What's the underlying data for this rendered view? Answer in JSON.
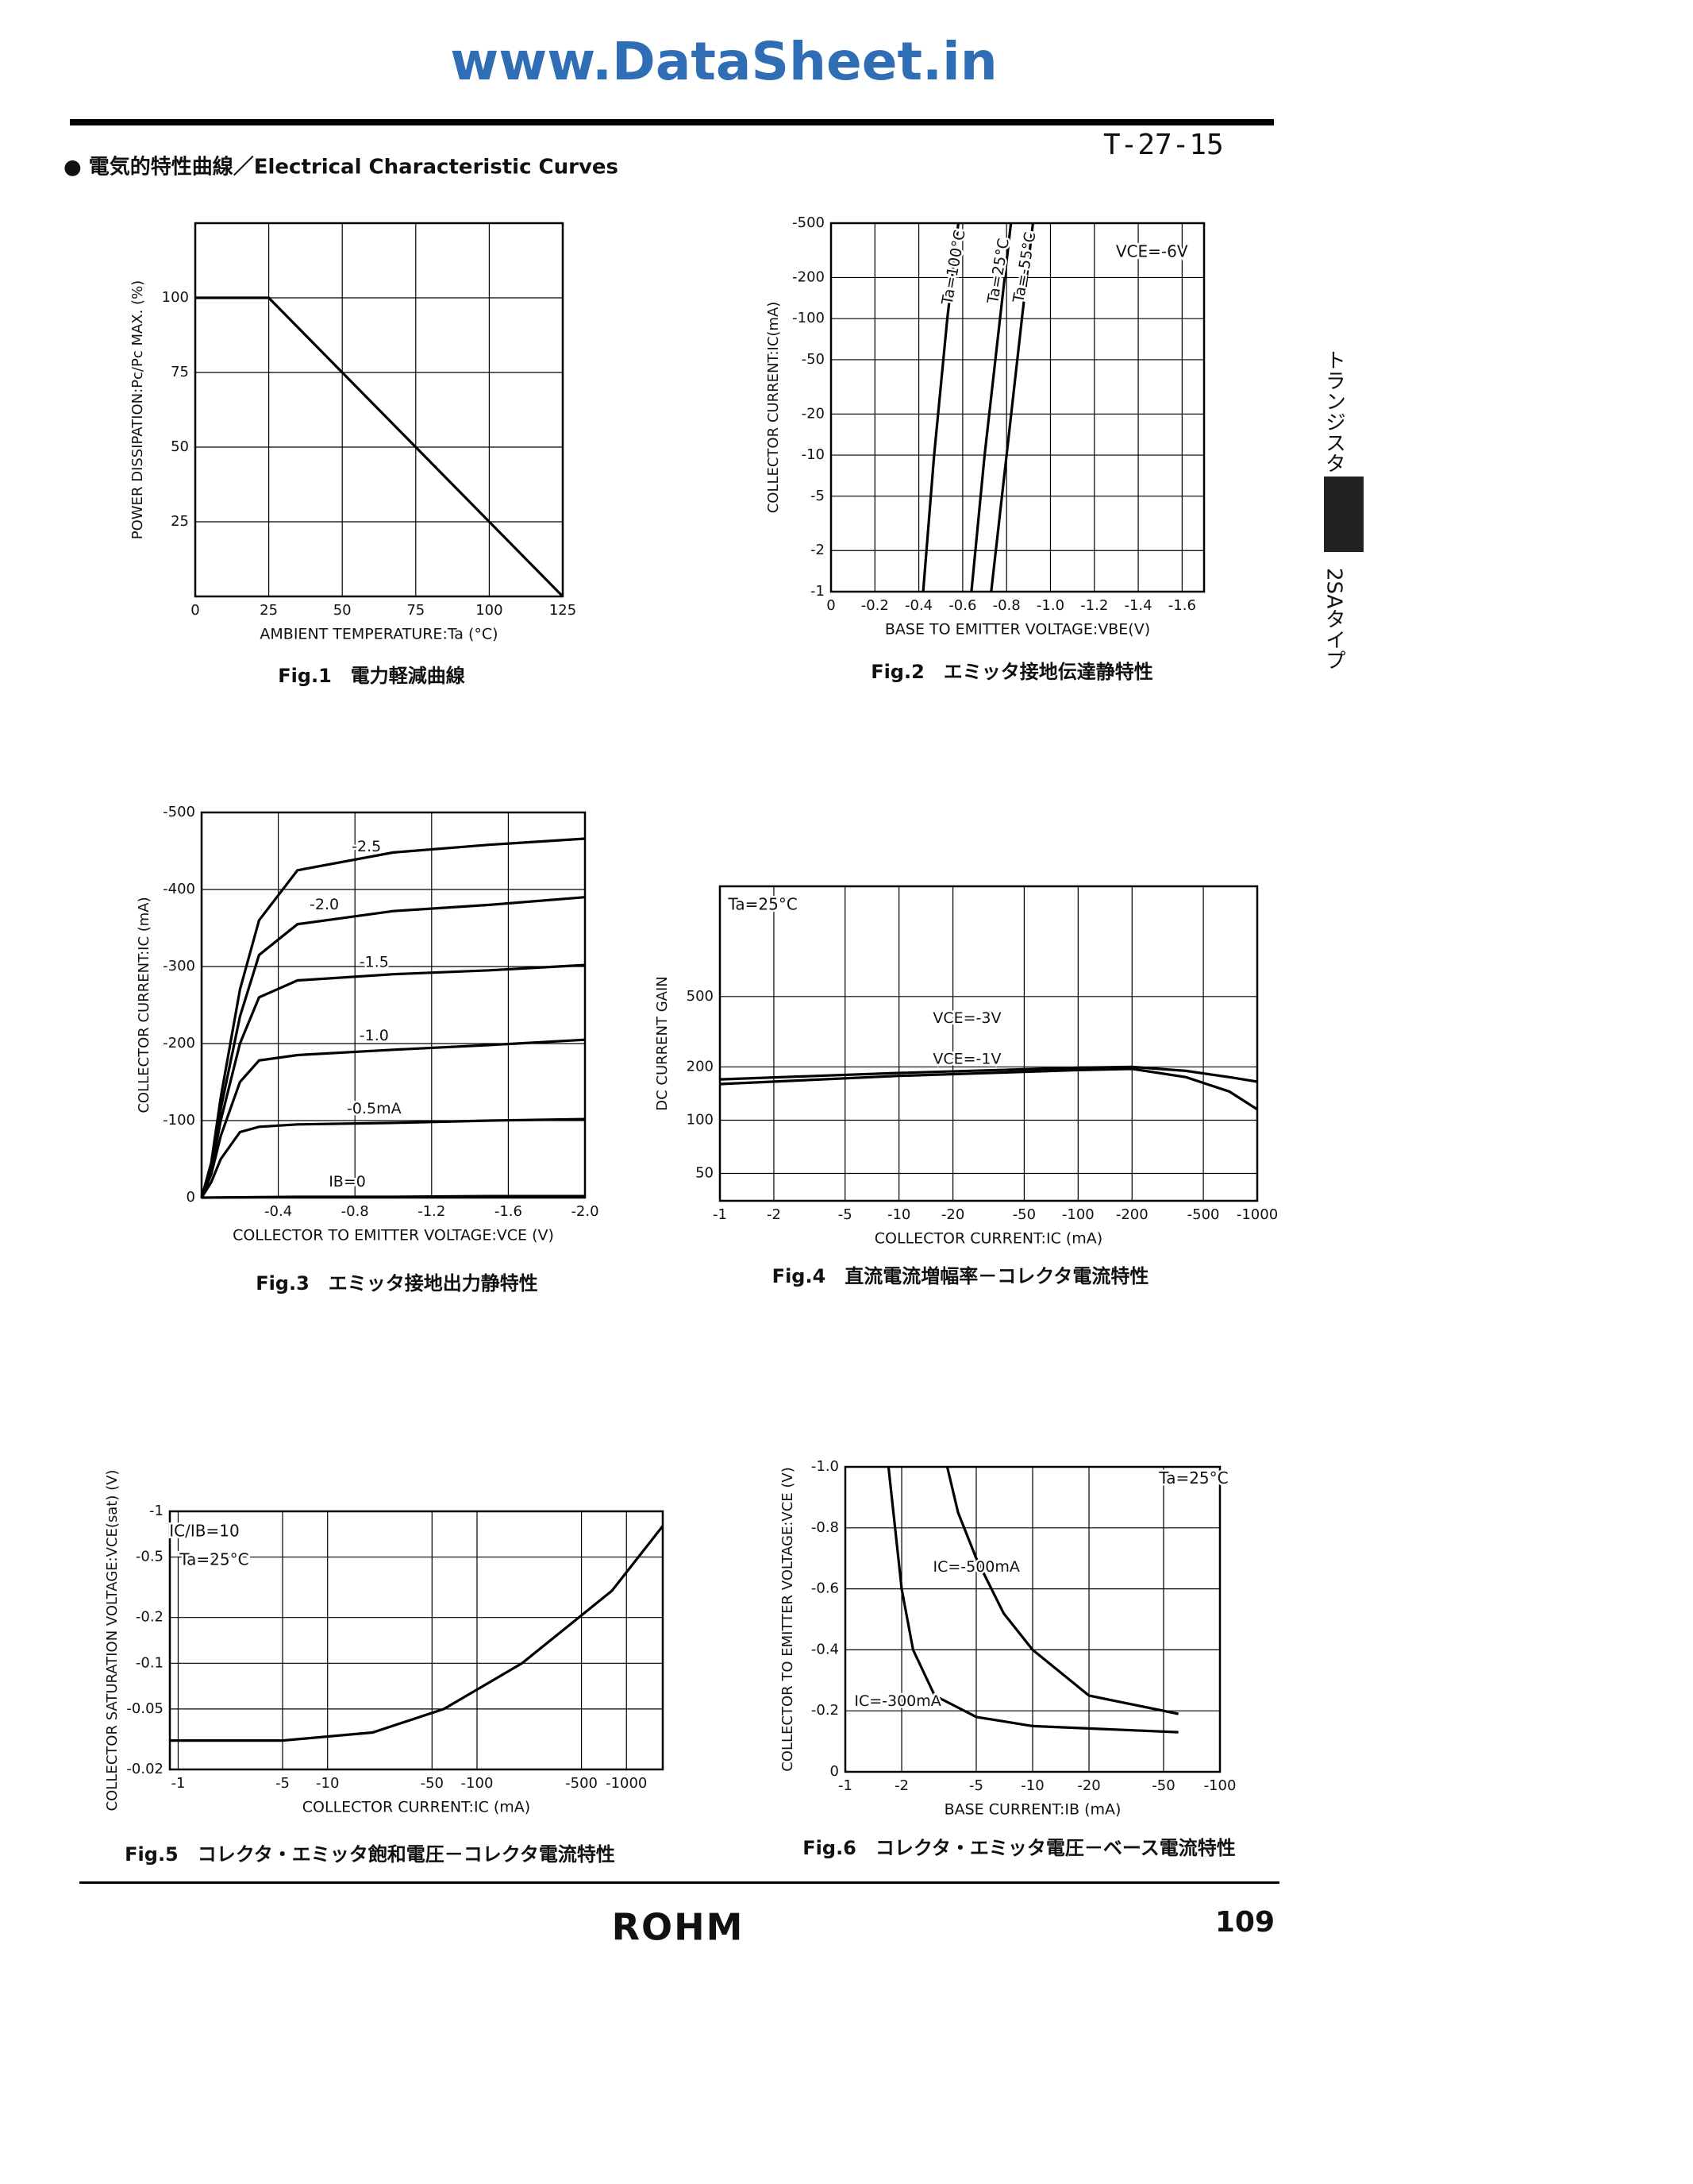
{
  "header": {
    "watermark": "www.DataSheet.in",
    "code": "T-27-15",
    "section": "● 電気的特性曲線／Electrical Characteristic Curves",
    "side_top": "トランジスタ",
    "side_bottom": "2SAタイプ"
  },
  "chart_data": [
    {
      "type": "line",
      "title": "Fig.1　電力軽減曲線",
      "xlabel": "AMBIENT TEMPERATURE:Ta (°C)",
      "ylabel": "POWER DISSIPATION:Pc/Pc MAX. (%)",
      "xscale": "linear",
      "yscale": "linear",
      "xlim": [
        0,
        125
      ],
      "ylim": [
        0,
        125
      ],
      "xticks": [
        0,
        25,
        50,
        75,
        100,
        125
      ],
      "yticks": [
        25,
        50,
        75,
        100
      ],
      "grid": true,
      "series": [
        {
          "color": "#000000",
          "x": [
            0,
            25,
            125
          ],
          "values": [
            100,
            100,
            0
          ]
        }
      ]
    },
    {
      "type": "line",
      "title": "Fig.2　エミッタ接地伝達静特性",
      "xlabel": "BASE TO EMITTER VOLTAGE:VBE(V)",
      "ylabel": "COLLECTOR CURRENT:IC(mA)",
      "xscale": "linear",
      "yscale": "log",
      "xlim": [
        0,
        -1.7
      ],
      "ylim": [
        -1,
        -500
      ],
      "xticks": [
        0,
        -0.2,
        -0.4,
        -0.6,
        -0.8,
        {
          "value": -1,
          "label": "-1.0"
        },
        -1.2,
        -1.4,
        -1.6
      ],
      "yticks": [
        -1,
        -2,
        -5,
        -10,
        -20,
        -50,
        -100,
        -200,
        -500
      ],
      "grid": true,
      "annotations": [
        "VCE=-6V"
      ],
      "series": [
        {
          "name": "Ta=100°C",
          "color": "#000000",
          "x": [
            -0.42,
            -0.47,
            -0.53,
            -0.58
          ],
          "values": [
            -1,
            -10,
            -100,
            -500
          ]
        },
        {
          "name": "Ta=25°C",
          "color": "#000000",
          "x": [
            -0.64,
            -0.7,
            -0.77,
            -0.82
          ],
          "values": [
            -1,
            -10,
            -100,
            -500
          ]
        },
        {
          "name": "Ta=-55°C",
          "color": "#000000",
          "x": [
            -0.73,
            -0.8,
            -0.87,
            -0.92
          ],
          "values": [
            -1,
            -10,
            -100,
            -500
          ]
        }
      ]
    },
    {
      "type": "line",
      "title": "Fig.3　エミッタ接地出力静特性",
      "xlabel": "COLLECTOR TO EMITTER VOLTAGE:VCE (V)",
      "ylabel": "COLLECTOR CURRENT:IC (mA)",
      "xscale": "linear",
      "yscale": "linear",
      "xlim": [
        0,
        -2
      ],
      "ylim": [
        0,
        -500
      ],
      "xticks": [
        -0.4,
        -0.8,
        -1.2,
        -1.6,
        {
          "value": -2,
          "label": "-2.0"
        }
      ],
      "yticks": [
        0,
        -100,
        -200,
        -300,
        -400,
        -500
      ],
      "grid": true,
      "series": [
        {
          "name": "IB=0",
          "color": "#000000",
          "x": [
            0,
            -0.5,
            -1,
            -1.5,
            -2
          ],
          "values": [
            0,
            -1,
            -1,
            -2,
            -2
          ]
        },
        {
          "name": "-0.5mA",
          "color": "#000000",
          "x": [
            0,
            -0.05,
            -0.1,
            -0.2,
            -0.3,
            -0.5,
            -1,
            -1.5,
            -2
          ],
          "values": [
            0,
            -20,
            -50,
            -85,
            -92,
            -95,
            -97,
            -100,
            -102
          ]
        },
        {
          "name": "-1.0",
          "color": "#000000",
          "x": [
            0,
            -0.05,
            -0.1,
            -0.2,
            -0.3,
            -0.5,
            -1,
            -1.5,
            -2
          ],
          "values": [
            0,
            -30,
            -80,
            -150,
            -178,
            -185,
            -192,
            -198,
            -205
          ]
        },
        {
          "name": "-1.5",
          "color": "#000000",
          "x": [
            0,
            -0.05,
            -0.1,
            -0.2,
            -0.3,
            -0.5,
            -1,
            -1.5,
            -2
          ],
          "values": [
            0,
            -35,
            -100,
            -200,
            -260,
            -282,
            -290,
            -295,
            -302
          ]
        },
        {
          "name": "-2.0",
          "color": "#000000",
          "x": [
            0,
            -0.05,
            -0.1,
            -0.2,
            -0.3,
            -0.5,
            -1,
            -1.5,
            -2
          ],
          "values": [
            0,
            -40,
            -115,
            -235,
            -315,
            -355,
            -372,
            -380,
            -390
          ]
        },
        {
          "name": "-2.5",
          "color": "#000000",
          "x": [
            0,
            -0.05,
            -0.1,
            -0.2,
            -0.3,
            -0.5,
            -1,
            -1.5,
            -2
          ],
          "values": [
            0,
            -45,
            -130,
            -270,
            -360,
            -425,
            -448,
            -458,
            -466
          ]
        }
      ]
    },
    {
      "type": "line",
      "title": "Fig.4　直流電流増幅率－コレクタ電流特性",
      "xlabel": "COLLECTOR CURRENT:IC (mA)",
      "ylabel": "DC CURRENT GAIN",
      "xscale": "log",
      "yscale": "log",
      "xlim": [
        -1,
        -1000
      ],
      "ylim": [
        35,
        2100
      ],
      "xticks": [
        -1,
        -2,
        -5,
        -10,
        -20,
        -50,
        -100,
        -200,
        -500,
        -1000
      ],
      "yticks": [
        50,
        100,
        200,
        500
      ],
      "grid": true,
      "annotations": [
        "Ta=25°C"
      ],
      "series": [
        {
          "name": "VCE=-3V",
          "color": "#000000",
          "x": [
            -1,
            -10,
            -100,
            -200,
            -400,
            -700,
            -1000
          ],
          "values": [
            170,
            185,
            198,
            200,
            190,
            175,
            165
          ]
        },
        {
          "name": "VCE=-1V",
          "color": "#000000",
          "x": [
            -1,
            -10,
            -100,
            -200,
            -400,
            -700,
            -1000
          ],
          "values": [
            160,
            178,
            192,
            195,
            175,
            145,
            115
          ]
        }
      ]
    },
    {
      "type": "line",
      "title": "Fig.5　コレクタ・エミッタ飽和電圧－コレクタ電流特性",
      "xlabel": "COLLECTOR CURRENT:IC (mA)",
      "ylabel": "COLLECTOR SATURATION VOLTAGE:VCE(sat) (V)",
      "xscale": "log",
      "yscale": "log",
      "xlim": [
        -0.88,
        -1750
      ],
      "ylim": [
        -0.02,
        -1
      ],
      "xticks": [
        -1,
        -5,
        -10,
        -50,
        -100,
        -500,
        -1000
      ],
      "yticks": [
        -0.02,
        -0.05,
        -0.1,
        -0.2,
        -0.5,
        -1
      ],
      "grid": true,
      "annotations": [
        "IC/IB=10",
        "Ta=25°C"
      ],
      "series": [
        {
          "color": "#000000",
          "x": [
            -0.88,
            -1,
            -5,
            -20,
            -60,
            -200,
            -800,
            -1750
          ],
          "values": [
            -0.031,
            -0.031,
            -0.031,
            -0.035,
            -0.05,
            -0.1,
            -0.3,
            -0.8
          ]
        }
      ]
    },
    {
      "type": "line",
      "title": "Fig.6　コレクタ・エミッタ電圧－ベース電流特性",
      "xlabel": "BASE CURRENT:IB (mA)",
      "ylabel": "COLLECTOR TO EMITTER VOLTAGE:VCE (V)",
      "xscale": "log",
      "yscale": "linear",
      "xlim": [
        -1,
        -100
      ],
      "ylim": [
        0,
        -1
      ],
      "xticks": [
        -1,
        -2,
        -5,
        -10,
        -20,
        -50,
        -100
      ],
      "yticks": [
        0,
        -0.2,
        -0.4,
        -0.6,
        -0.8,
        {
          "value": -1,
          "label": "-1.0"
        }
      ],
      "grid": true,
      "annotations": [
        "Ta=25°C"
      ],
      "series": [
        {
          "name": "IC=-500mA",
          "color": "#000000",
          "x": [
            -3.5,
            -4,
            -5,
            -7,
            -10,
            -20,
            -60
          ],
          "values": [
            -1,
            -0.85,
            -0.7,
            -0.52,
            -0.4,
            -0.25,
            -0.19
          ]
        },
        {
          "name": "IC=-300mA",
          "color": "#000000",
          "x": [
            -1.7,
            -2,
            -2.3,
            -3,
            -5,
            -10,
            -60
          ],
          "values": [
            -1,
            -0.6,
            -0.4,
            -0.25,
            -0.18,
            -0.15,
            -0.13
          ]
        }
      ]
    }
  ],
  "footer": {
    "brand": "ROHM",
    "page": "109"
  }
}
